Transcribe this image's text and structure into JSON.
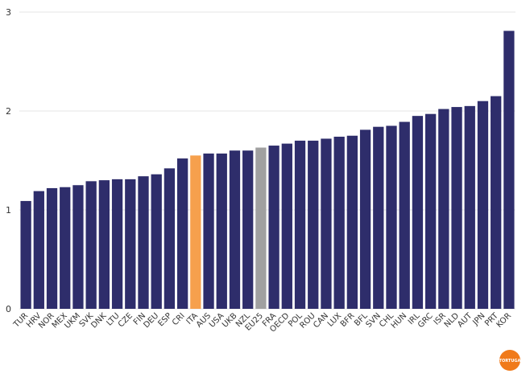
{
  "chart_data": {
    "type": "bar",
    "categories": [
      "TUR",
      "HRV",
      "NOR",
      "MEX",
      "UKM",
      "SVK",
      "DNK",
      "LTU",
      "CZE",
      "FIN",
      "DEU",
      "ESP",
      "CRI",
      "ITA",
      "AUS",
      "USA",
      "UKB",
      "NZL",
      "EU25",
      "FRA",
      "OECD",
      "POL",
      "ROU",
      "CAN",
      "LUX",
      "BFR",
      "BFL",
      "SVN",
      "CHL",
      "HUN",
      "IRL",
      "GRC",
      "ISR",
      "NLD",
      "AUT",
      "JPN",
      "PRT",
      "KOR"
    ],
    "values": [
      1.09,
      1.19,
      1.22,
      1.23,
      1.25,
      1.29,
      1.3,
      1.31,
      1.31,
      1.34,
      1.36,
      1.42,
      1.52,
      1.55,
      1.57,
      1.57,
      1.6,
      1.6,
      1.63,
      1.65,
      1.67,
      1.7,
      1.7,
      1.72,
      1.74,
      1.75,
      1.81,
      1.84,
      1.85,
      1.89,
      1.95,
      1.97,
      2.02,
      2.04,
      2.05,
      2.1,
      2.15,
      2.81
    ],
    "yticks": [
      "0",
      "1",
      "2",
      "3"
    ],
    "ylim": [
      0,
      3
    ],
    "grid": true,
    "colors": {
      "default": "#2e2d6b",
      "highlight": "#f6a04d",
      "reference": "#a0a0a0",
      "grid": "#e6e6e6"
    },
    "highlight_categories": [
      "ITA"
    ],
    "reference_categories": [
      "EU25"
    ]
  },
  "logo": {
    "text": "TORTUGA",
    "color": "#f07a1a"
  }
}
